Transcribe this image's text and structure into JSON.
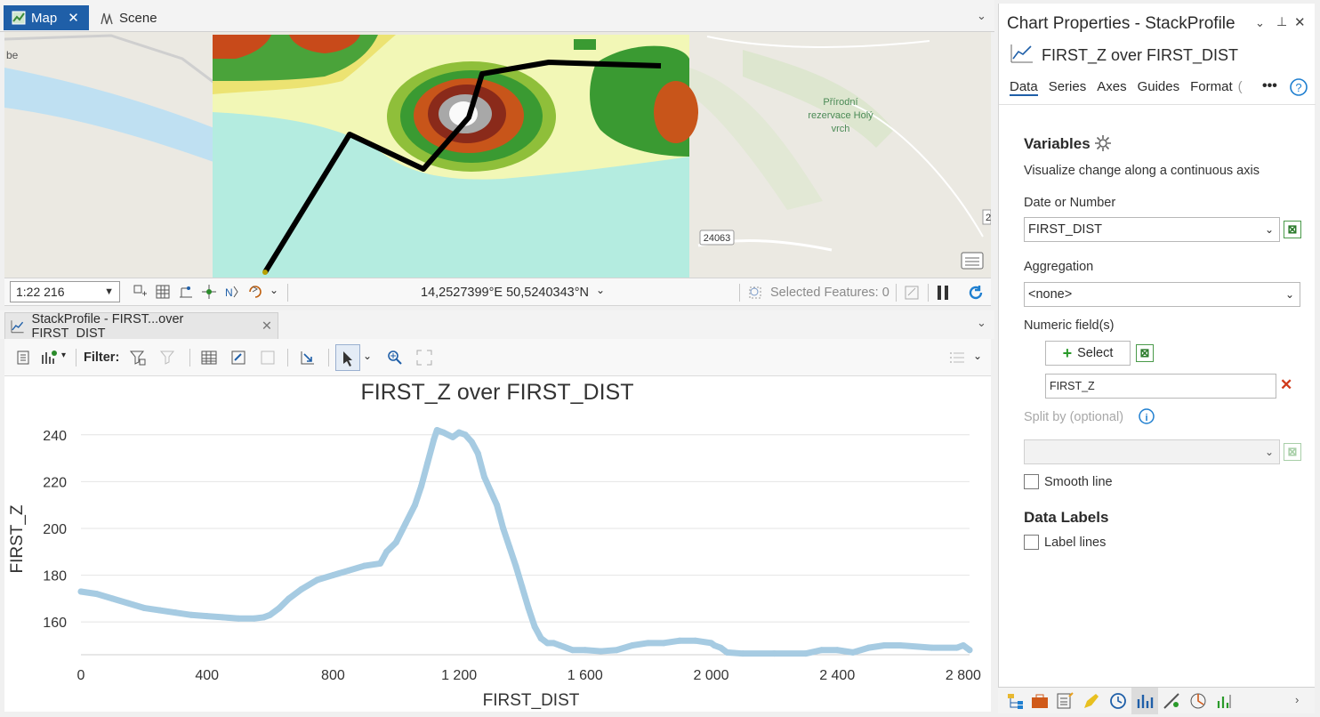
{
  "map_tabs": [
    {
      "label": "Map",
      "active": true
    },
    {
      "label": "Scene",
      "active": false
    }
  ],
  "map": {
    "labels": {
      "reserve": "Přírodní\nrezervace Holý\nvrch",
      "road": "24063",
      "edge_top": "be",
      "edge_right": "2"
    },
    "scale": "1:22 216",
    "coords": "14,2527399°E 50,5240343°N",
    "selected_features": "Selected Features: 0"
  },
  "chart_tab": {
    "label": "StackProfile - FIRST...over FIRST_DIST"
  },
  "chart_toolbar": {
    "filter_label": "Filter:"
  },
  "chart_data": {
    "type": "line",
    "title": "FIRST_Z over FIRST_DIST",
    "xlabel": "FIRST_DIST",
    "ylabel": "FIRST_Z",
    "xlim": [
      0,
      2820
    ],
    "ylim": [
      146,
      246
    ],
    "x_ticks": [
      0,
      400,
      800,
      1200,
      1600,
      2000,
      2400,
      2800
    ],
    "x_tick_labels": [
      "0",
      "400",
      "800",
      "1 200",
      "1 600",
      "2 000",
      "2 400",
      "2 800"
    ],
    "y_ticks": [
      160,
      180,
      200,
      220,
      240
    ],
    "y_tick_labels": [
      "160",
      "180",
      "200",
      "220",
      "240"
    ],
    "grid": true,
    "color": "#a6cbe2",
    "series": [
      {
        "x": [
          0,
          50,
          100,
          150,
          200,
          250,
          300,
          350,
          400,
          450,
          500,
          550,
          580,
          600,
          630,
          660,
          700,
          750,
          800,
          850,
          900,
          950,
          970,
          1000,
          1030,
          1060,
          1080,
          1100,
          1120,
          1130,
          1150,
          1180,
          1200,
          1220,
          1240,
          1260,
          1280,
          1300,
          1320,
          1340,
          1360,
          1380,
          1400,
          1420,
          1440,
          1460,
          1480,
          1500,
          1520,
          1560,
          1600,
          1650,
          1700,
          1750,
          1800,
          1850,
          1900,
          1950,
          2000,
          2010,
          2030,
          2050,
          2100,
          2200,
          2300,
          2350,
          2400,
          2450,
          2500,
          2550,
          2600,
          2700,
          2780,
          2800,
          2820
        ],
        "y": [
          173,
          172,
          170,
          168,
          166,
          165,
          164,
          163,
          162.5,
          162,
          161.5,
          161.5,
          162,
          163,
          166,
          170,
          174,
          178,
          180,
          182,
          184,
          185,
          190,
          194,
          202,
          210,
          218,
          228,
          238,
          242,
          241,
          239,
          241,
          240,
          237,
          232,
          222,
          216,
          210,
          200,
          192,
          184,
          175,
          166,
          158,
          153,
          151,
          151,
          150,
          148,
          148,
          147.5,
          148,
          150,
          151,
          151,
          152,
          152,
          151,
          150,
          149,
          147,
          146.5,
          146.5,
          146.5,
          148,
          148,
          147,
          149,
          150,
          150,
          149,
          149,
          150,
          148
        ]
      }
    ]
  },
  "props": {
    "title": "Chart Properties - StackProfile",
    "subtitle": "FIRST_Z over FIRST_DIST",
    "tabs": [
      "Data",
      "Series",
      "Axes",
      "Guides",
      "Format",
      "("
    ],
    "more": "•••",
    "variables_title": "Variables",
    "variables_desc": "Visualize change along a continuous axis",
    "date_label": "Date or Number",
    "date_value": "FIRST_DIST",
    "agg_label": "Aggregation",
    "agg_value": "<none>",
    "numeric_label": "Numeric field(s)",
    "select_label": "Select",
    "numeric_value": "FIRST_Z",
    "split_label": "Split by (optional)",
    "smooth_label": "Smooth line",
    "data_labels_title": "Data Labels",
    "label_lines": "Label lines"
  }
}
